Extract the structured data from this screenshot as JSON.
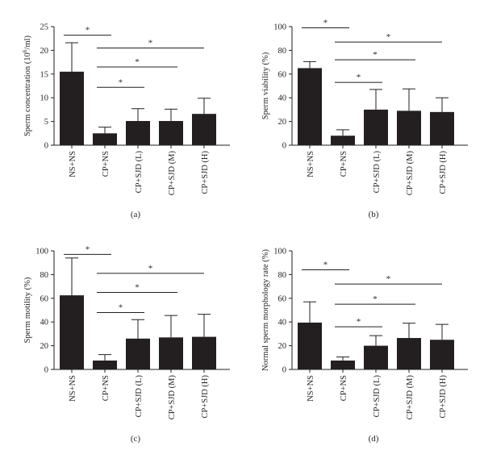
{
  "colors": {
    "bar": "#231f20",
    "axis": "#231f20",
    "background": "#ffffff"
  },
  "chart_data": [
    {
      "type": "bar",
      "panel_label": "(a)",
      "ylabel_main": "Sperm concentration (10",
      "ylabel_sup": "6",
      "ylabel_tail": "/ml)",
      "categories": [
        "NS+NS",
        "CP+NS",
        "CP+SJD (L)",
        "CP+SJD (M)",
        "CP+SJD (H)"
      ],
      "values": [
        15.5,
        2.5,
        5.1,
        5.1,
        6.6
      ],
      "errors": [
        6.1,
        1.3,
        2.6,
        2.5,
        3.3
      ],
      "ylim": [
        0,
        25
      ],
      "yticks": [
        0,
        5,
        10,
        15,
        20,
        25
      ],
      "significance": [
        {
          "from": 0,
          "to": 1,
          "y": 23.2,
          "label": "*"
        },
        {
          "from": 1,
          "to": 4,
          "y": 20.5,
          "label": "*"
        },
        {
          "from": 1,
          "to": 3,
          "y": 16.5,
          "label": "*"
        },
        {
          "from": 1,
          "to": 2,
          "y": 12.2,
          "label": "*"
        }
      ]
    },
    {
      "type": "bar",
      "panel_label": "(b)",
      "ylabel_main": "Sperm viability (%)",
      "categories": [
        "NS+NS",
        "CP+NS",
        "CP+SJD (L)",
        "CP+SJD (M)",
        "CP+SJD (H)"
      ],
      "values": [
        65,
        8,
        30,
        29,
        28
      ],
      "errors": [
        5.5,
        5,
        17,
        18.5,
        12
      ],
      "ylim": [
        0,
        100
      ],
      "yticks": [
        0,
        20,
        40,
        60,
        80,
        100
      ],
      "significance": [
        {
          "from": 0,
          "to": 1,
          "y": 99,
          "label": "*"
        },
        {
          "from": 1,
          "to": 4,
          "y": 87,
          "label": "*"
        },
        {
          "from": 1,
          "to": 3,
          "y": 72,
          "label": "*"
        },
        {
          "from": 1,
          "to": 2,
          "y": 53,
          "label": "*"
        }
      ]
    },
    {
      "type": "bar",
      "panel_label": "(c)",
      "ylabel_main": "Sperm motility (%)",
      "categories": [
        "NS+NS",
        "CP+NS",
        "CP+SJD (L)",
        "CP+SJD (M)",
        "CP+SJD (H)"
      ],
      "values": [
        62.5,
        7.5,
        26,
        27,
        27.5
      ],
      "errors": [
        31.5,
        5,
        16,
        18.5,
        19
      ],
      "ylim": [
        0,
        100
      ],
      "yticks": [
        0,
        20,
        40,
        60,
        80,
        100
      ],
      "significance": [
        {
          "from": 0,
          "to": 1,
          "y": 97,
          "label": "*"
        },
        {
          "from": 1,
          "to": 4,
          "y": 81,
          "label": "*"
        },
        {
          "from": 1,
          "to": 3,
          "y": 65,
          "label": "*"
        },
        {
          "from": 1,
          "to": 2,
          "y": 48,
          "label": "*"
        }
      ]
    },
    {
      "type": "bar",
      "panel_label": "(d)",
      "ylabel_main": "Normal sperm morphology rate (%)",
      "categories": [
        "NS+NS",
        "CP+NS",
        "CP+SJD (L)",
        "CP+SJD (M)",
        "CP+SJD (H)"
      ],
      "values": [
        39.5,
        7.5,
        20,
        26.5,
        25
      ],
      "errors": [
        17.5,
        3,
        8.5,
        12.5,
        13
      ],
      "ylim": [
        0,
        100
      ],
      "yticks": [
        0,
        20,
        40,
        60,
        80,
        100
      ],
      "significance": [
        {
          "from": 0,
          "to": 1,
          "y": 84,
          "label": "*"
        },
        {
          "from": 1,
          "to": 4,
          "y": 72,
          "label": "*"
        },
        {
          "from": 1,
          "to": 3,
          "y": 55,
          "label": "*"
        },
        {
          "from": 1,
          "to": 2,
          "y": 36,
          "label": "*"
        }
      ]
    }
  ]
}
